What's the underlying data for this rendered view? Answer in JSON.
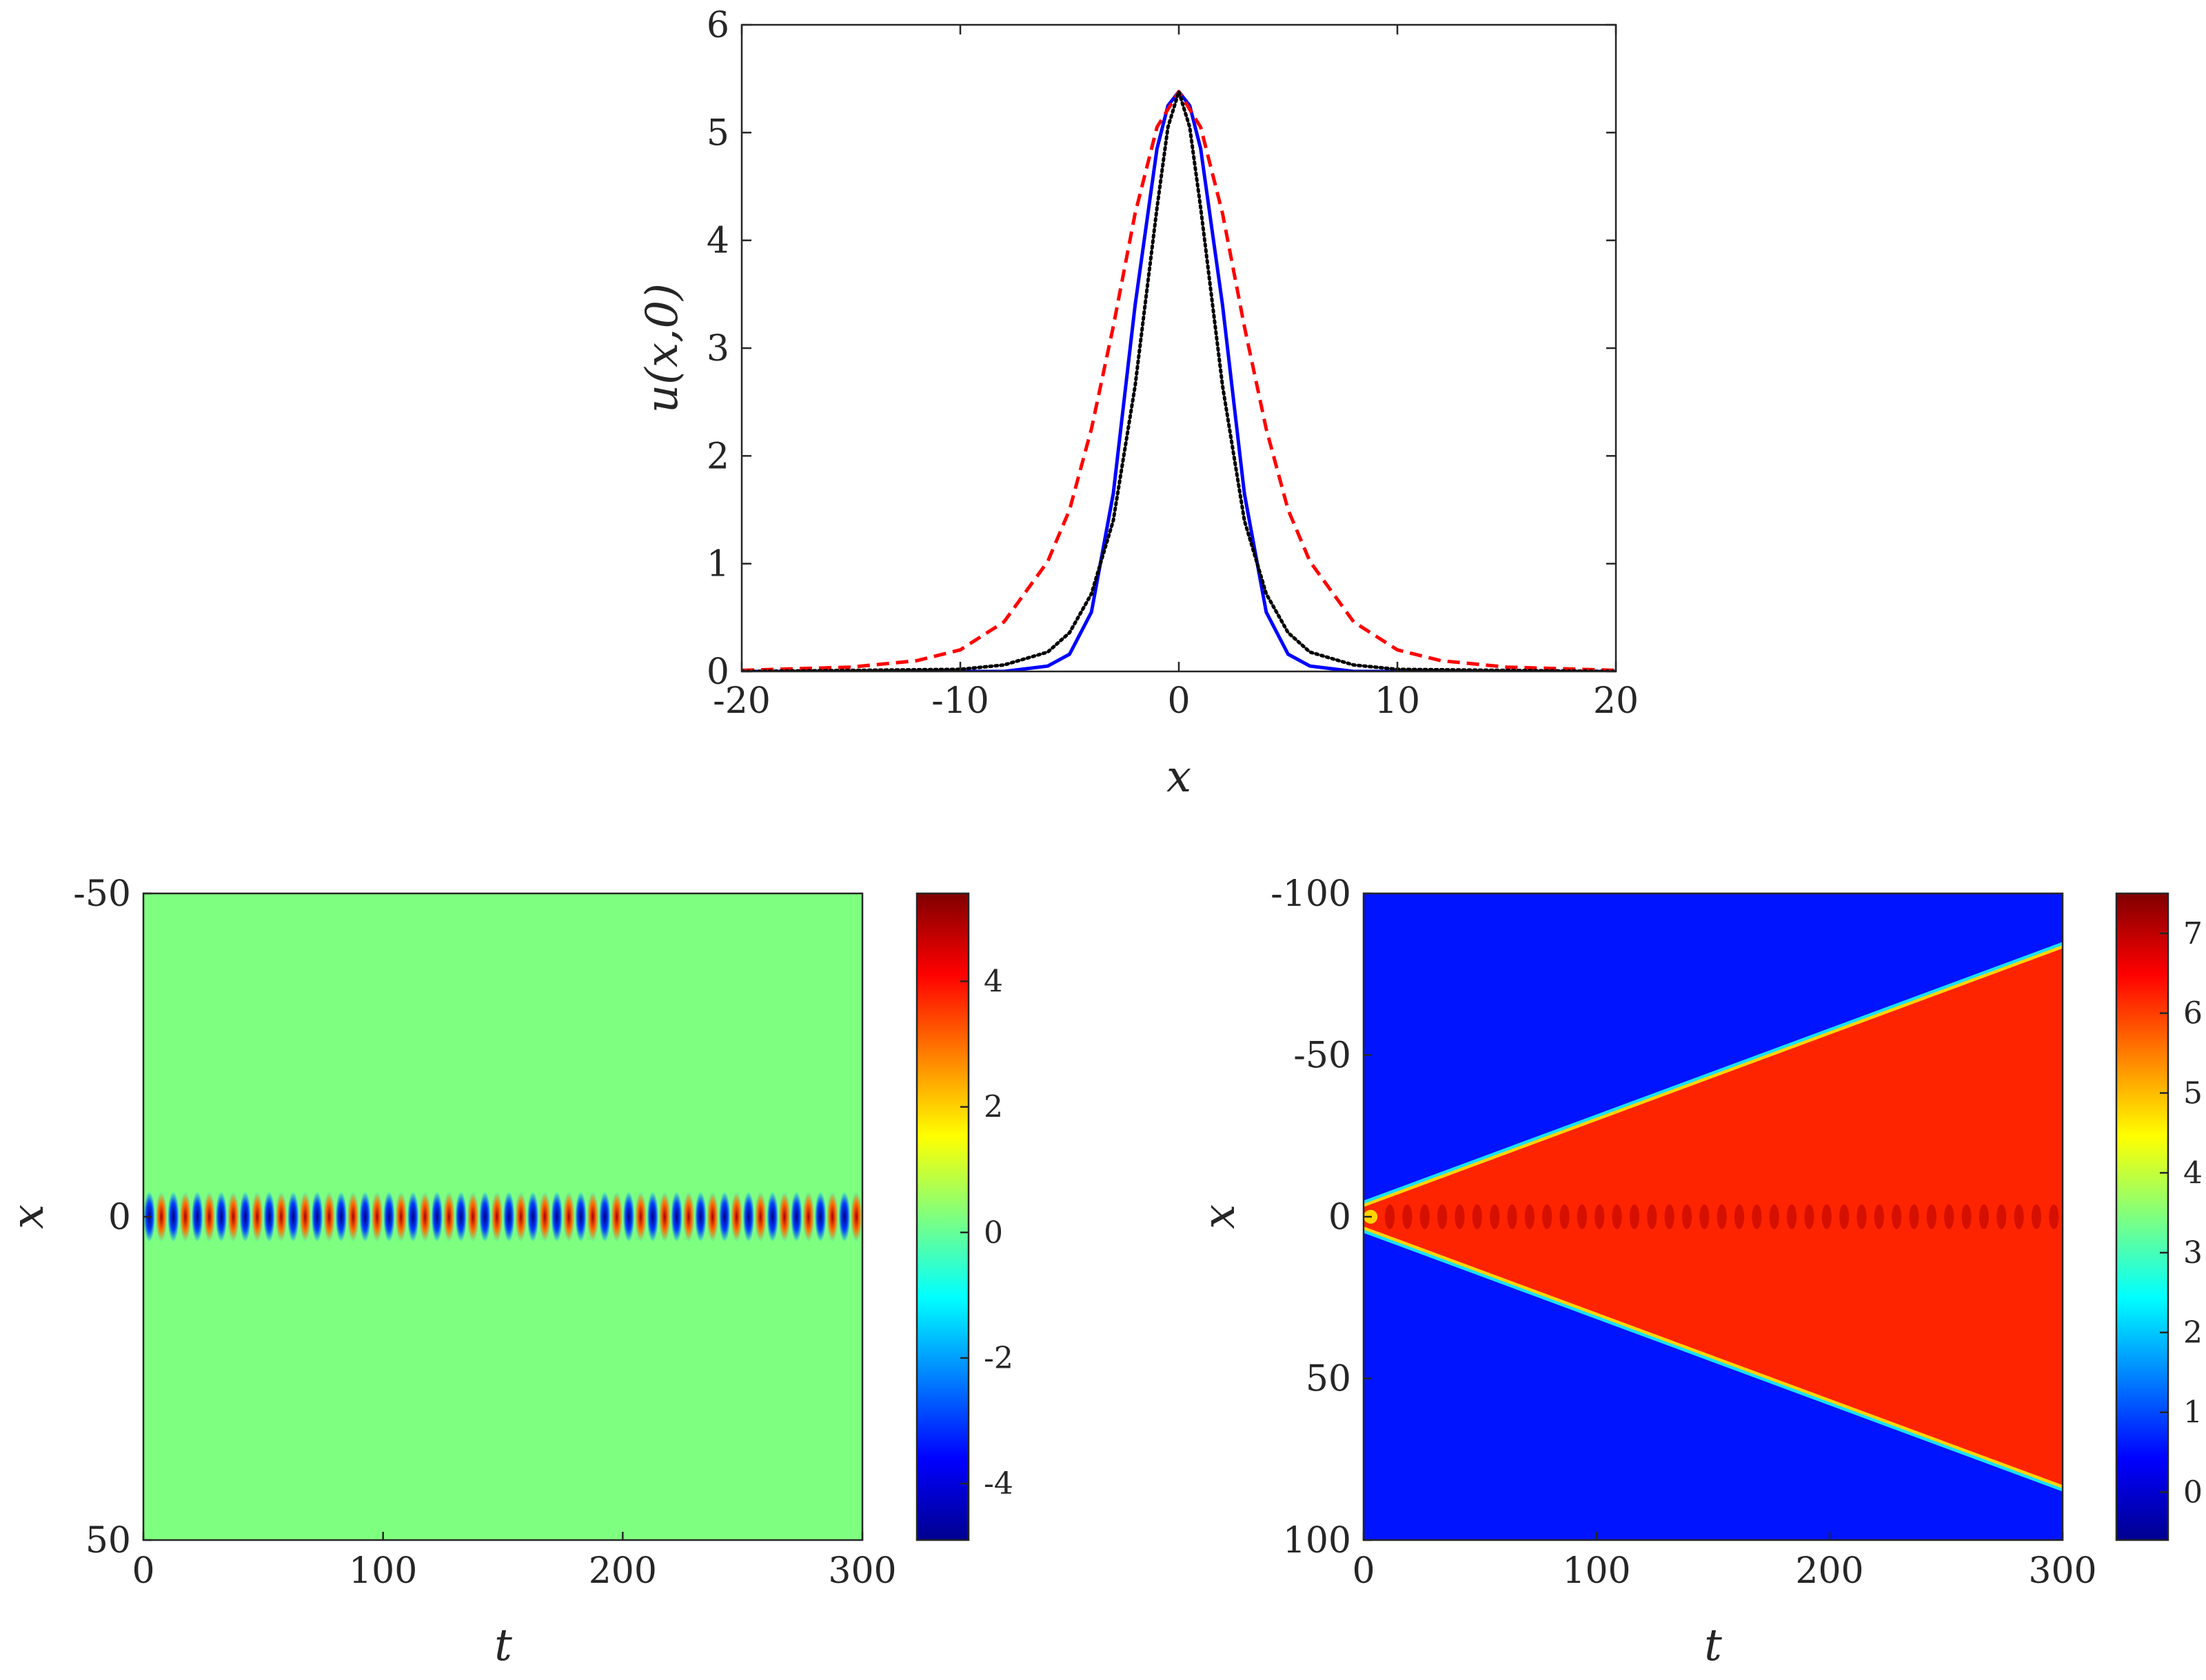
{
  "chart_data": [
    {
      "type": "line",
      "xlabel": "x",
      "ylabel": "u(x,0)",
      "xlim": [
        -20,
        20
      ],
      "ylim": [
        0,
        6
      ],
      "xticks": [
        "-20",
        "-10",
        "0",
        "10",
        "20"
      ],
      "yticks": [
        "0",
        "1",
        "2",
        "3",
        "4",
        "5",
        "6"
      ],
      "grid": false,
      "series": [
        {
          "style": "solid",
          "color": "#0000ff",
          "peak": 5.38,
          "x": [
            -20,
            -10,
            -8,
            -6,
            -5,
            -4,
            -3,
            -2,
            -1,
            -0.5,
            0,
            0.5,
            1,
            2,
            3,
            4,
            5,
            6,
            8,
            10,
            20
          ],
          "y": [
            0,
            0,
            0,
            0.05,
            0.16,
            0.55,
            1.65,
            3.4,
            4.85,
            5.25,
            5.38,
            5.25,
            4.85,
            3.4,
            1.65,
            0.55,
            0.16,
            0.05,
            0,
            0,
            0
          ]
        },
        {
          "style": "dashed",
          "color": "#ff0000",
          "peak": 5.38,
          "x": [
            -20,
            -15,
            -12,
            -10,
            -8,
            -6,
            -5,
            -4,
            -3,
            -2,
            -1,
            0,
            1,
            2,
            3,
            4,
            5,
            6,
            8,
            10,
            12,
            15,
            20
          ],
          "y": [
            0.01,
            0.04,
            0.1,
            0.2,
            0.46,
            1.02,
            1.5,
            2.25,
            3.2,
            4.25,
            5.05,
            5.38,
            5.05,
            4.25,
            3.2,
            2.25,
            1.5,
            1.02,
            0.46,
            0.2,
            0.1,
            0.04,
            0.01
          ]
        },
        {
          "style": "dotted",
          "color": "#000000",
          "peak": 5.38,
          "x": [
            -20,
            -10,
            -8,
            -6,
            -5,
            -4,
            -3,
            -2,
            -1,
            -0.5,
            0,
            0.5,
            1,
            2,
            3,
            4,
            5,
            6,
            8,
            10,
            20
          ],
          "y": [
            0,
            0.02,
            0.06,
            0.18,
            0.36,
            0.72,
            1.4,
            2.65,
            4.3,
            5.05,
            5.38,
            5.05,
            4.3,
            2.65,
            1.4,
            0.72,
            0.36,
            0.18,
            0.06,
            0.02,
            0
          ]
        }
      ]
    },
    {
      "type": "heatmap",
      "xlabel": "t",
      "ylabel": "x",
      "xlim": [
        0,
        300
      ],
      "ylim": [
        -50,
        50
      ],
      "xticks": [
        "0",
        "100",
        "200",
        "300"
      ],
      "yticks": [
        "-50",
        "0",
        "50"
      ],
      "colormap": "jet",
      "color_range": [
        -4.9,
        5.4
      ],
      "colorbar_ticks": [
        "-4",
        "-2",
        "0",
        "2",
        "4"
      ],
      "background_value": 0,
      "oscillation_center_x": 0,
      "oscillation_amplitude": 5,
      "oscillation_cycles": 30
    },
    {
      "type": "heatmap",
      "xlabel": "t",
      "ylabel": "x",
      "xlim": [
        0,
        300
      ],
      "ylim": [
        -100,
        100
      ],
      "xticks": [
        "0",
        "100",
        "200",
        "300"
      ],
      "yticks": [
        "-100",
        "-50",
        "0",
        "50",
        "100"
      ],
      "colormap": "jet",
      "color_range": [
        -0.6,
        7.5
      ],
      "colorbar_ticks": [
        "0",
        "1",
        "2",
        "3",
        "4",
        "5",
        "6",
        "7"
      ],
      "background_value": 0.4,
      "plateau_value": 6.2,
      "front_x_at_t300": 83,
      "front_x_at_t0": 3
    }
  ]
}
